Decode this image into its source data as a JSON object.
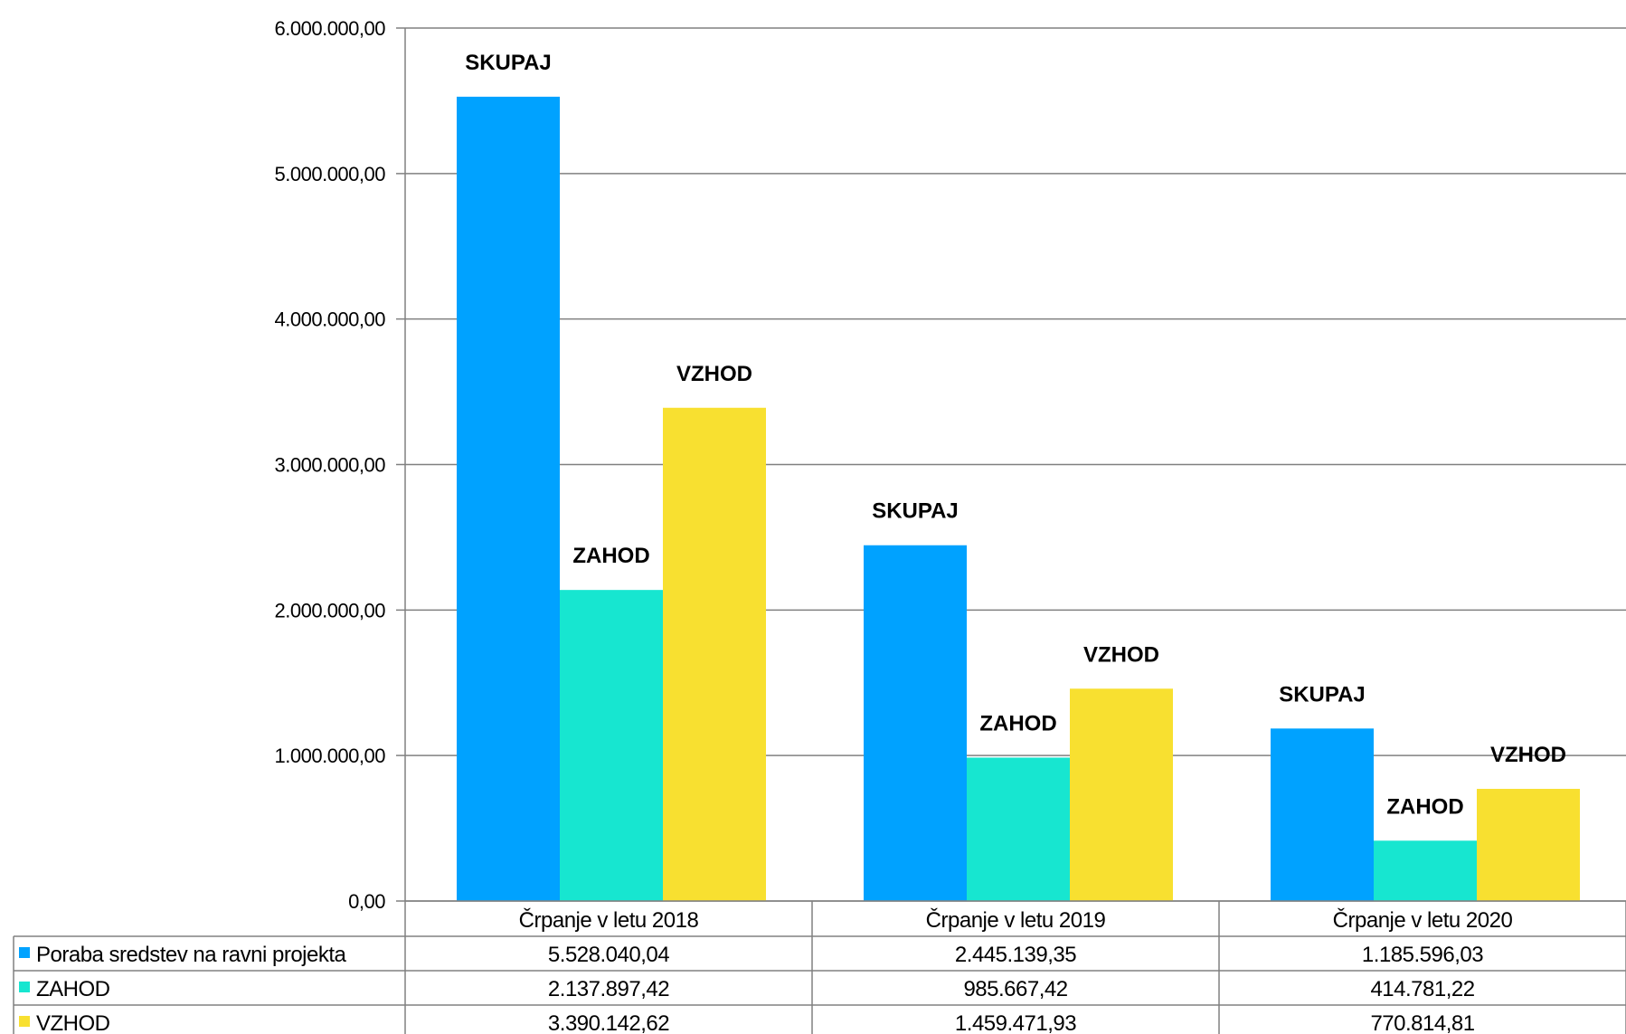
{
  "chart_data": {
    "type": "bar",
    "categories": [
      "Črpanje v letu 2018",
      "Črpanje v letu 2019",
      "Črpanje v letu 2020"
    ],
    "series": [
      {
        "name": "Poraba sredstev na ravni projekta",
        "color": "#00A2FF",
        "data_label": "SKUPAJ",
        "values": [
          5528040.04,
          2445139.35,
          1185596.03
        ],
        "value_labels": [
          "5.528.040,04",
          "2.445.139,35",
          "1.185.596,03"
        ]
      },
      {
        "name": "ZAHOD",
        "color": "#17E6D0",
        "data_label": "ZAHOD",
        "values": [
          2137897.42,
          985667.42,
          414781.22
        ],
        "value_labels": [
          "2.137.897,42",
          "985.667,42",
          "414.781,22"
        ]
      },
      {
        "name": "VZHOD",
        "color": "#F8E030",
        "data_label": "VZHOD",
        "values": [
          3390142.62,
          1459471.93,
          770814.81
        ],
        "value_labels": [
          "3.390.142,62",
          "1.459.471,93",
          "770.814,81"
        ]
      }
    ],
    "ylim": [
      0,
      6000000
    ],
    "y_ticks": [
      0,
      1000000,
      2000000,
      3000000,
      4000000,
      5000000,
      6000000
    ],
    "y_tick_labels": [
      "0,00",
      "1.000.000,00",
      "2.000.000,00",
      "3.000.000,00",
      "4.000.000,00",
      "5.000.000,00",
      "6.000.000,00"
    ],
    "grid": true,
    "legend": "data-table-below",
    "title": "",
    "xlabel": "",
    "ylabel": ""
  }
}
